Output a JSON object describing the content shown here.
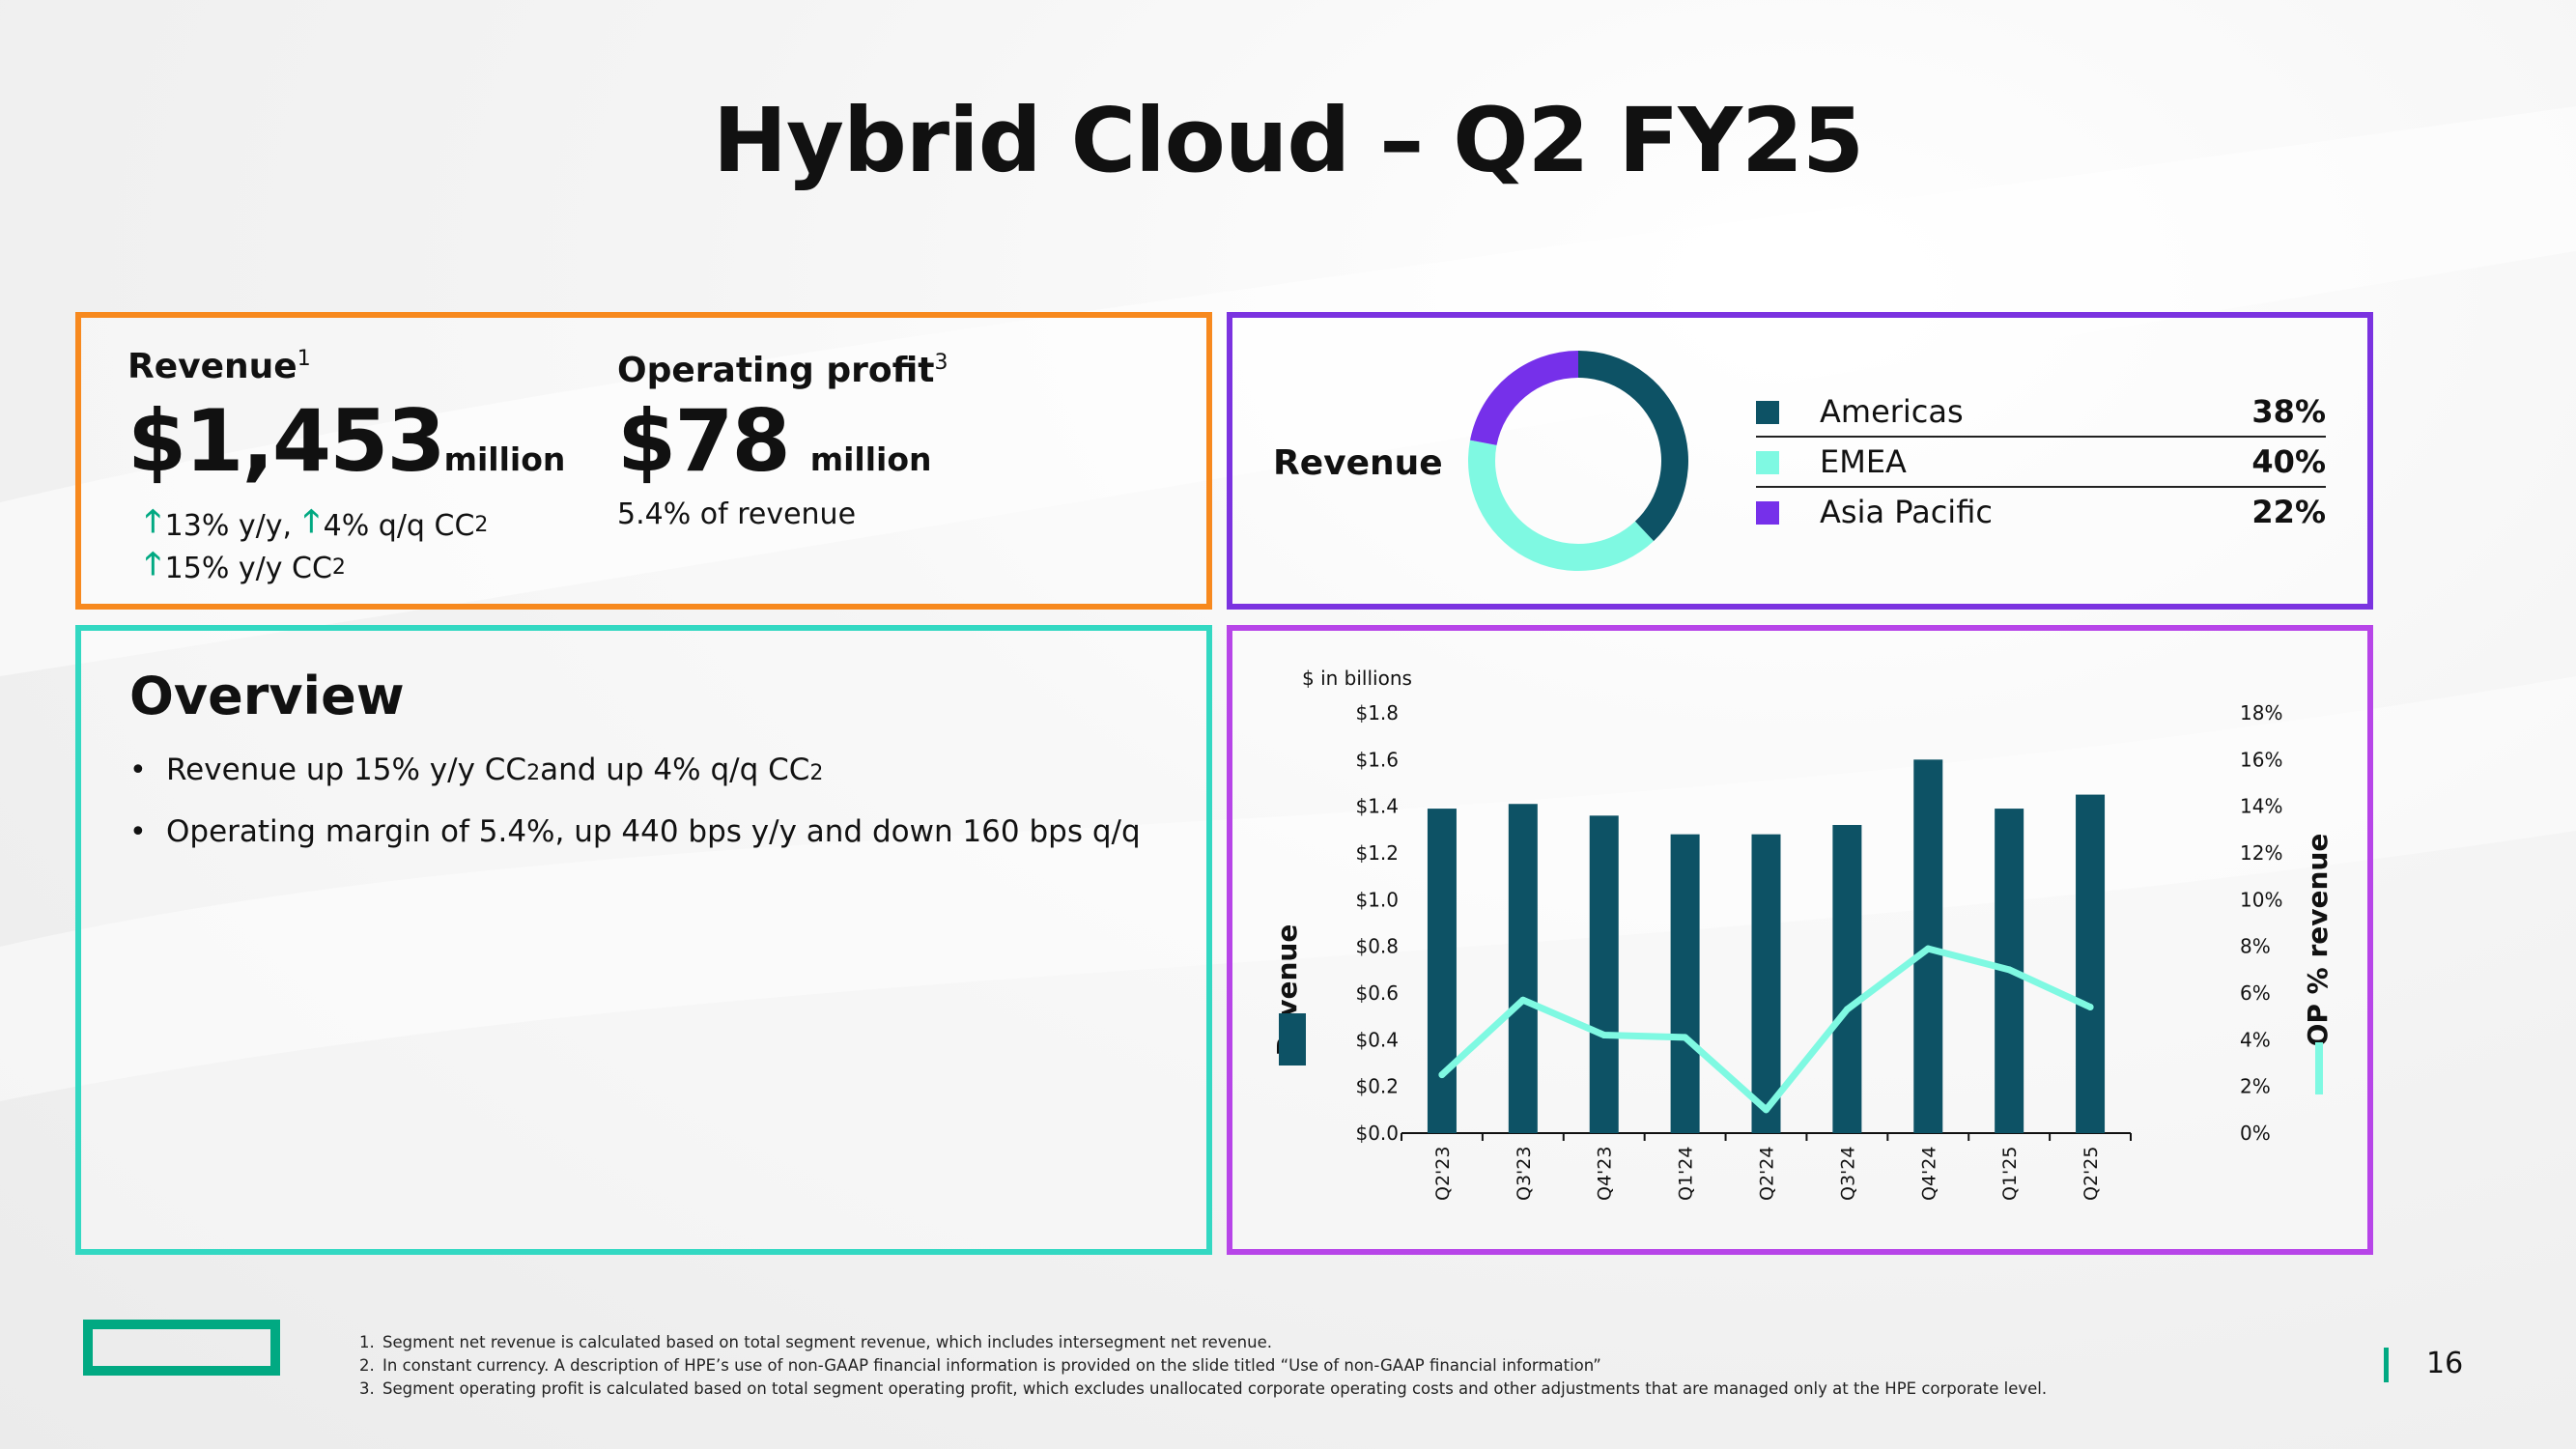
{
  "title": "Hybrid Cloud – Q2 FY25",
  "kpis": {
    "revenue": {
      "label": "Revenue",
      "footnote_ref": "1",
      "value": "$1,453",
      "unit": "million",
      "growth1_a": "13% y/y,",
      "growth1_b": "4% q/q CC",
      "growth1_b_ref": "2",
      "growth2": "15% y/y CC",
      "growth2_ref": "2"
    },
    "operating_profit": {
      "label": "Operating profit",
      "footnote_ref": "3",
      "value": "$78",
      "unit": "million",
      "note": "5.4% of revenue"
    }
  },
  "revenue_mix": {
    "label": "Revenue",
    "items": [
      {
        "name": "Americas",
        "pct": "38%",
        "value": 38,
        "color": "#0d5265"
      },
      {
        "name": "EMEA",
        "pct": "40%",
        "value": 40,
        "color": "#7ff9e2"
      },
      {
        "name": "Asia Pacific",
        "pct": "22%",
        "value": 22,
        "color": "#7630ea"
      }
    ]
  },
  "overview": {
    "title": "Overview",
    "bullet1_a": "Revenue up 15% y/y CC",
    "bullet1_ref1": "2",
    "bullet1_b": " and up 4% q/q CC",
    "bullet1_ref2": "2",
    "bullet2": "Operating margin of 5.4%, up 440 bps y/y and down 160 bps q/q"
  },
  "chart_data": {
    "type": "bar",
    "units_label": "$ in billions",
    "categories": [
      "Q2'23",
      "Q3'23",
      "Q4'23",
      "Q1'24",
      "Q2'24",
      "Q3'24",
      "Q4'24",
      "Q1'25",
      "Q2'25"
    ],
    "series": [
      {
        "name": "Revenue",
        "type": "bar",
        "axis": "left",
        "color": "#0d5265",
        "values": [
          1.39,
          1.41,
          1.36,
          1.28,
          1.28,
          1.32,
          1.6,
          1.39,
          1.45
        ]
      },
      {
        "name": "OP % revenue",
        "type": "line",
        "axis": "right",
        "color": "#7ff9e2",
        "values": [
          2.5,
          5.7,
          4.2,
          4.1,
          1.0,
          5.3,
          7.9,
          7.0,
          5.4
        ]
      }
    ],
    "y_left": {
      "label": "Revenue",
      "ticks": [
        "$0.0",
        "$0.2",
        "$0.4",
        "$0.6",
        "$0.8",
        "$1.0",
        "$1.2",
        "$1.4",
        "$1.6",
        "$1.8"
      ],
      "lim": [
        0,
        1.8
      ]
    },
    "y_right": {
      "label": "OP % revenue",
      "ticks": [
        "0%",
        "2%",
        "4%",
        "6%",
        "8%",
        "10%",
        "12%",
        "14%",
        "16%",
        "18%"
      ],
      "lim": [
        0,
        18
      ]
    },
    "grid": false
  },
  "footnotes": [
    {
      "n": "1.",
      "text": "Segment net revenue is calculated based on total segment revenue, which includes intersegment net revenue."
    },
    {
      "n": "2.",
      "text": "In constant currency. A description of HPE’s use of non-GAAP financial information is provided on the slide titled “Use of non-GAAP financial information”"
    },
    {
      "n": "3.",
      "text": "Segment operating profit is calculated based on total segment operating profit, which excludes unallocated corporate operating costs and other adjustments that are managed only at the HPE corporate level."
    }
  ],
  "page_number": "16",
  "colors": {
    "orange": "#f7891e",
    "purple": "#7b33e0",
    "teal": "#33d8c2",
    "magenta": "#b745e8",
    "hpe_green": "#01a982"
  }
}
